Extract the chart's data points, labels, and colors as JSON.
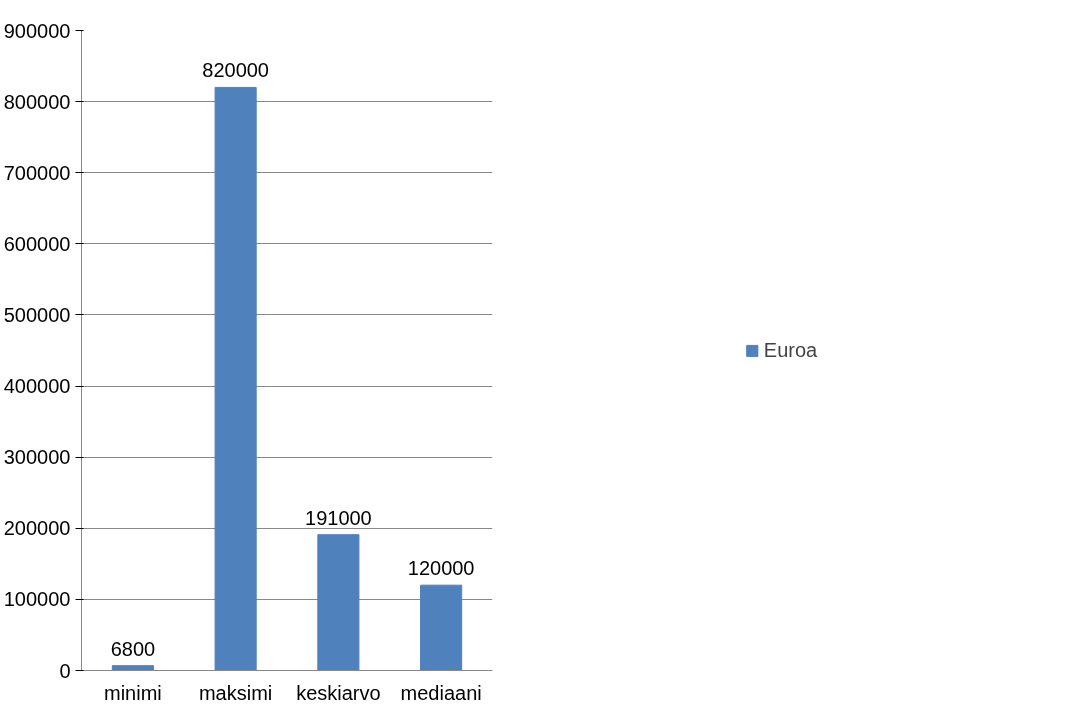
{
  "chart_data": {
    "type": "bar",
    "categories": [
      "minimi",
      "maksimi",
      "keskiarvo",
      "mediaani"
    ],
    "series": [
      {
        "name": "Euroa",
        "color": "#4f81bd",
        "values": [
          6800,
          820000,
          191000,
          120000
        ]
      }
    ],
    "ylim": [
      0,
      900000
    ],
    "yticks": [
      0,
      100000,
      200000,
      300000,
      400000,
      500000,
      600000,
      700000,
      800000,
      900000
    ],
    "grid": "y",
    "legend": "right",
    "data_labels": true
  }
}
